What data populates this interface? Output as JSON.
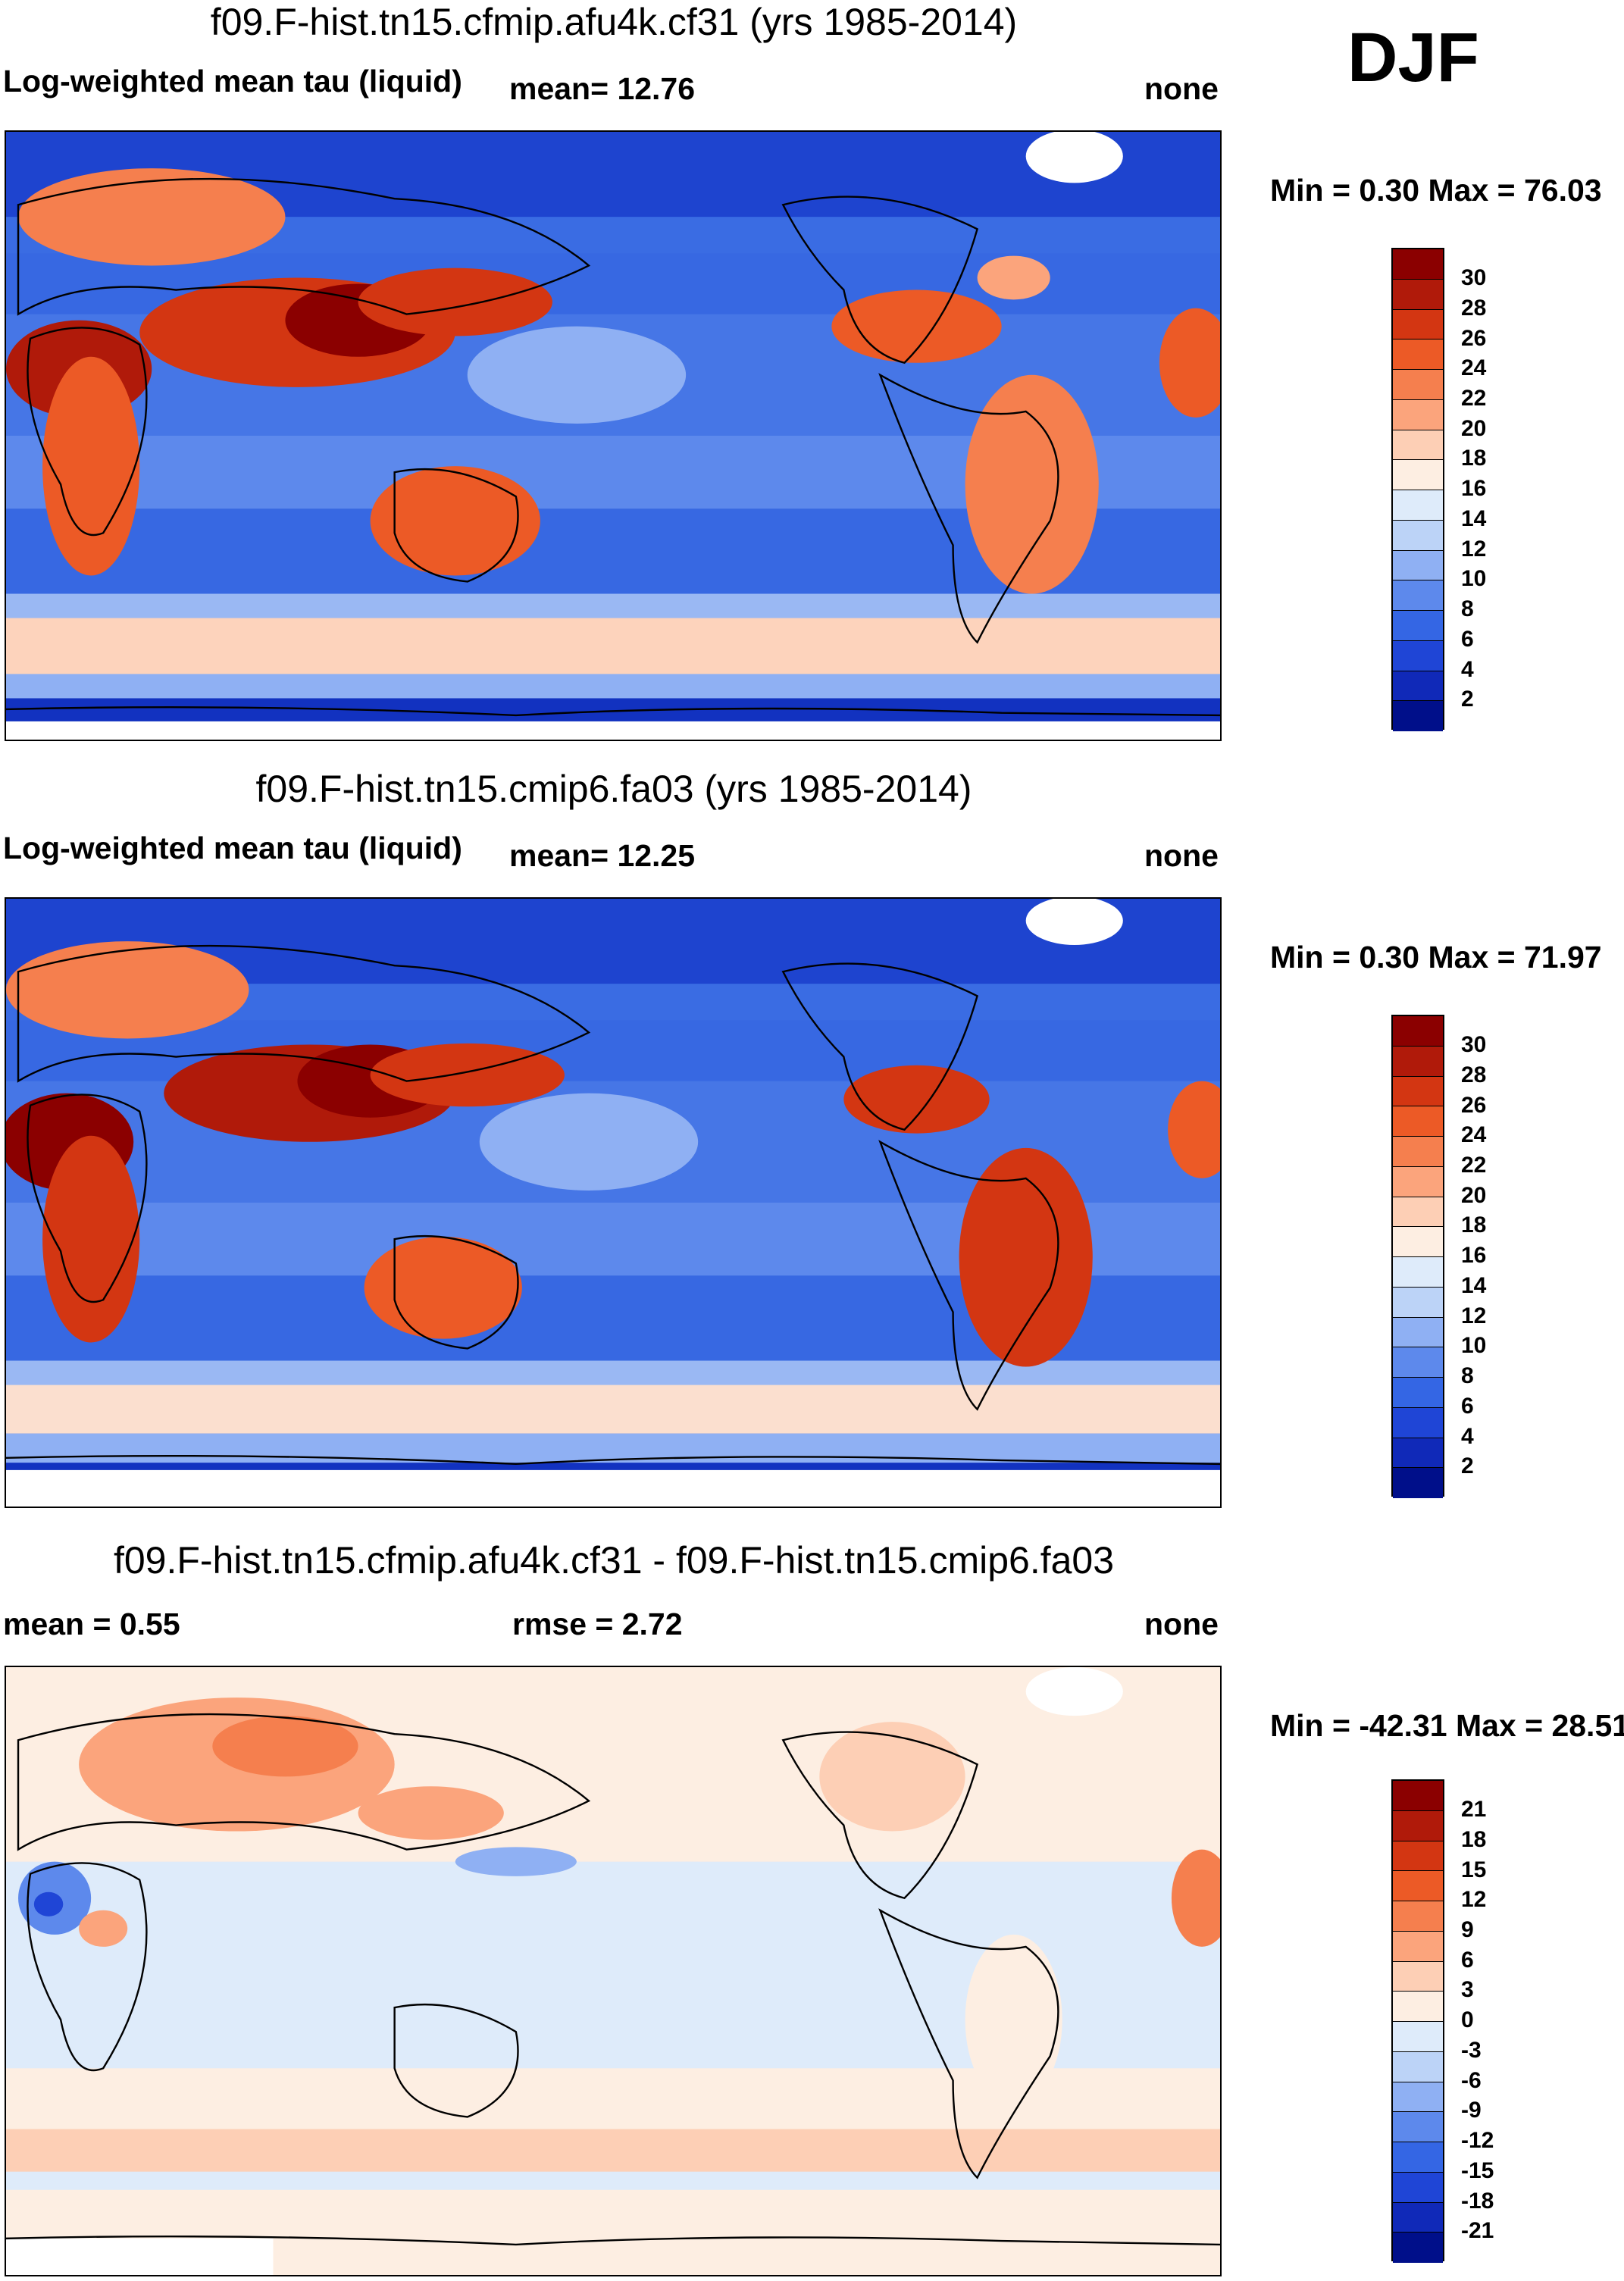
{
  "season": "DJF",
  "panels": [
    {
      "title": "f09.F-hist.tn15.cfmip.afu4k.cf31 (yrs 1985-2014)",
      "left_label": "Log-weighted mean tau (liquid)",
      "mean_text": "mean=  12.76",
      "units": "none",
      "minmax": "Min =   0.30 Max =  76.03",
      "colorbar": {
        "ticks": [
          "30",
          "28",
          "26",
          "24",
          "22",
          "20",
          "18",
          "16",
          "14",
          "12",
          "10",
          "8",
          "6",
          "4",
          "2"
        ],
        "colors": [
          "#8b0000",
          "#b01a0a",
          "#d33612",
          "#ec5a26",
          "#f57f4e",
          "#fba47c",
          "#fdcfb5",
          "#fdeee2",
          "#deebfa",
          "#bcd3f7",
          "#8fb0f3",
          "#5d89ec",
          "#3466e4",
          "#1f45d6",
          "#1029b8",
          "#000f8a"
        ]
      }
    },
    {
      "title": "f09.F-hist.tn15.cmip6.fa03 (yrs 1985-2014)",
      "left_label": "Log-weighted mean tau (liquid)",
      "mean_text": "mean=  12.25",
      "units": "none",
      "minmax": "Min =   0.30 Max =  71.97",
      "colorbar": {
        "ticks": [
          "30",
          "28",
          "26",
          "24",
          "22",
          "20",
          "18",
          "16",
          "14",
          "12",
          "10",
          "8",
          "6",
          "4",
          "2"
        ],
        "colors": [
          "#8b0000",
          "#b01a0a",
          "#d33612",
          "#ec5a26",
          "#f57f4e",
          "#fba47c",
          "#fdcfb5",
          "#fdeee2",
          "#deebfa",
          "#bcd3f7",
          "#8fb0f3",
          "#5d89ec",
          "#3466e4",
          "#1f45d6",
          "#1029b8",
          "#000f8a"
        ]
      }
    },
    {
      "title": "f09.F-hist.tn15.cfmip.afu4k.cf31 - f09.F-hist.tn15.cmip6.fa03",
      "mean_text": "mean =   0.55",
      "rmse_text": "rmse =   2.72",
      "units": "none",
      "minmax": "Min = -42.31 Max =  28.51",
      "colorbar": {
        "ticks": [
          "21",
          "18",
          "15",
          "12",
          "9",
          "6",
          "3",
          "0",
          "-3",
          "-6",
          "-9",
          "-12",
          "-15",
          "-18",
          "-21"
        ],
        "colors": [
          "#8b0000",
          "#b01a0a",
          "#d33612",
          "#ec5a26",
          "#f57f4e",
          "#fba47c",
          "#fdcfb5",
          "#fdeee2",
          "#deebfa",
          "#bcd3f7",
          "#8fb0f3",
          "#5d89ec",
          "#3466e4",
          "#1f45d6",
          "#1029b8",
          "#000f8a"
        ]
      }
    }
  ]
}
